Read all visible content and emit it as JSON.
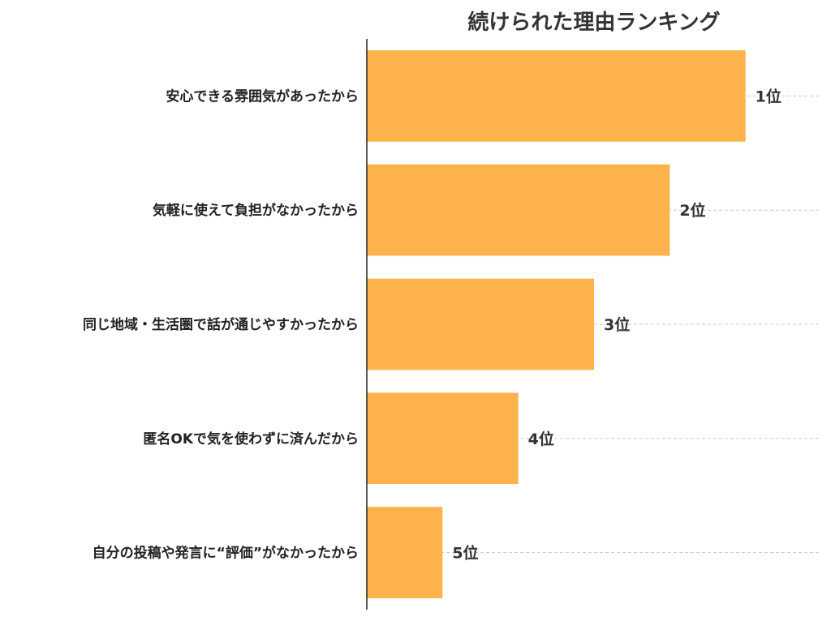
{
  "chart_data": {
    "type": "bar",
    "orientation": "horizontal",
    "title": "続けられた理由ランキング",
    "xlabel": "",
    "ylabel": "",
    "categories": [
      "安心できる雰囲気があったから",
      "気軽に使えて負担がなかったから",
      "同じ地域・生活圏で話が通じやすかったから",
      "匿名OKで気を使わずに済んだから",
      "自分の投稿や発言に“評価”がなかったから"
    ],
    "values": [
      5,
      4,
      3,
      2,
      1
    ],
    "data_labels": [
      "1位",
      "2位",
      "3位",
      "4位",
      "5位"
    ],
    "xlim": [
      0,
      6
    ],
    "bar_color": "#FDB24B",
    "grid": "horizontal dashed at each bar",
    "legend": "none"
  }
}
